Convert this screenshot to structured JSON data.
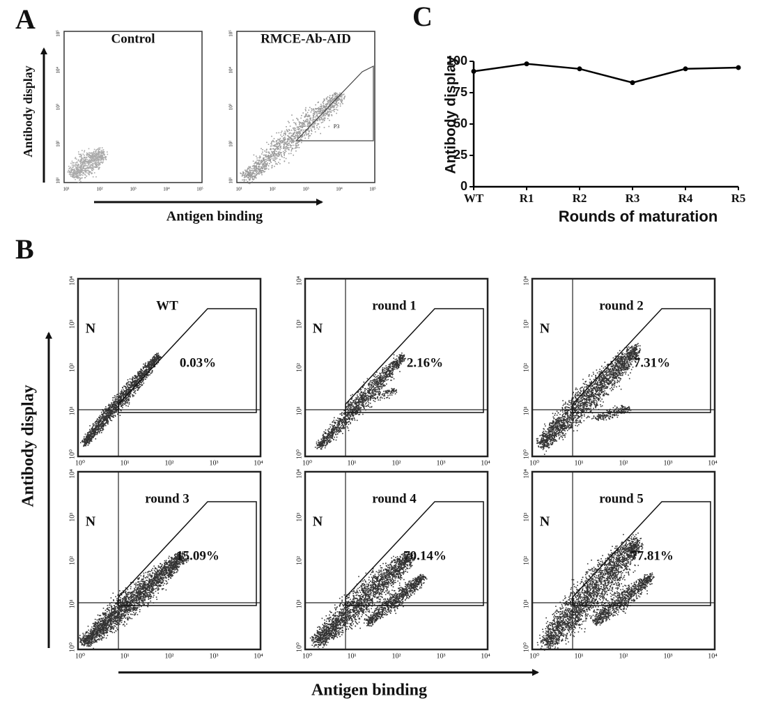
{
  "panel_a": {
    "label": "A",
    "y_label": "Antibody display",
    "x_label": "Antigen binding",
    "ticks": [
      "10¹",
      "10²",
      "10³",
      "10⁴",
      "10⁵"
    ],
    "plots": [
      {
        "title": "Control"
      },
      {
        "title": "RMCE-Ab-AID",
        "gate_label": "P3"
      }
    ]
  },
  "panel_b": {
    "label": "B",
    "y_label": "Antibody display",
    "x_label": "Antigen binding",
    "ticks": [
      "10⁰",
      "10¹",
      "10²",
      "10³",
      "10⁴"
    ],
    "plots": [
      {
        "title": "WT",
        "quadrant_label": "N",
        "gate_percent": "0.03%"
      },
      {
        "title": "round 1",
        "quadrant_label": "N",
        "gate_percent": "2.16%"
      },
      {
        "title": "round 2",
        "quadrant_label": "N",
        "gate_percent": "7.31%"
      },
      {
        "title": "round 3",
        "quadrant_label": "N",
        "gate_percent": "15.09%"
      },
      {
        "title": "round 4",
        "quadrant_label": "N",
        "gate_percent": "70.14%"
      },
      {
        "title": "round 5",
        "quadrant_label": "N",
        "gate_percent": "77.81%"
      }
    ]
  },
  "panel_c": {
    "label": "C"
  },
  "chart_data": {
    "type": "line",
    "x_label": "Rounds of maturation",
    "y_label": "Antibody display",
    "categories": [
      "WT",
      "R1",
      "R2",
      "R3",
      "R4",
      "R5"
    ],
    "values": [
      92,
      98,
      94,
      83,
      94,
      95
    ],
    "color": "#000000",
    "ylim": [
      0,
      100
    ],
    "yticks": [
      0,
      25,
      50,
      75,
      100
    ]
  }
}
